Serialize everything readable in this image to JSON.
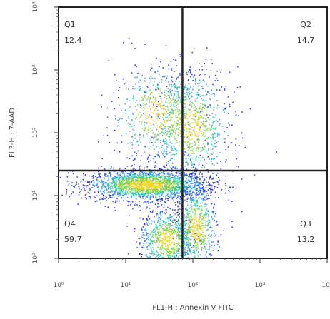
{
  "chart_data": {
    "type": "scatter",
    "subtype": "flow-cytometry-density",
    "xlabel": "FL1-H : Annexin V FITC",
    "ylabel": "FL3-H : 7-AAD",
    "x_scale": "log",
    "y_scale": "log",
    "xlim": [
      1,
      10000
    ],
    "ylim": [
      1,
      10000
    ],
    "x_ticks": [
      "10⁰",
      "10¹",
      "10²",
      "10³",
      "10⁴"
    ],
    "y_ticks": [
      "10⁰",
      "10¹",
      "10²",
      "10³",
      "10⁴"
    ],
    "gate": {
      "x": 70,
      "y": 25
    },
    "quadrants": [
      {
        "name": "Q1",
        "percent": "12.4",
        "position": "top-left"
      },
      {
        "name": "Q2",
        "percent": "14.7",
        "position": "top-right"
      },
      {
        "name": "Q3",
        "percent": "13.2",
        "position": "bottom-right"
      },
      {
        "name": "Q4",
        "percent": "59.7",
        "position": "bottom-left"
      }
    ],
    "populations": [
      {
        "x_center": 20,
        "y_center": 15,
        "x_spread_decades": 0.45,
        "y_spread_decades": 0.12,
        "weight": 0.4
      },
      {
        "x_center": 40,
        "y_center": 2,
        "x_spread_decades": 0.2,
        "y_spread_decades": 0.25,
        "weight": 0.16
      },
      {
        "x_center": 90,
        "y_center": 130,
        "x_spread_decades": 0.3,
        "y_spread_decades": 0.45,
        "weight": 0.18
      },
      {
        "x_center": 30,
        "y_center": 200,
        "x_spread_decades": 0.35,
        "y_spread_decades": 0.4,
        "weight": 0.12
      },
      {
        "x_center": 110,
        "y_center": 3,
        "x_spread_decades": 0.15,
        "y_spread_decades": 0.35,
        "weight": 0.14
      }
    ],
    "density_colors": [
      "#0a1fd6",
      "#1e8be0",
      "#1fc8a0",
      "#7fd23a",
      "#e8d21e",
      "#e83a1e"
    ],
    "grid": false
  }
}
